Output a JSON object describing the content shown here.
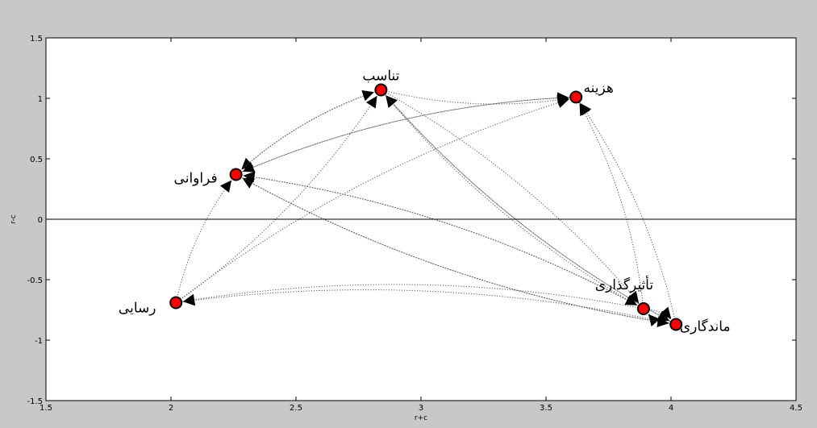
{
  "chart_data": {
    "type": "scatter",
    "title": "",
    "xlabel": "r+c",
    "ylabel": "r-c",
    "xlim": [
      1.5,
      4.5
    ],
    "ylim": [
      -1.5,
      1.5
    ],
    "xticks": [
      1.5,
      2,
      2.5,
      3,
      3.5,
      4,
      4.5
    ],
    "xtick_labels": [
      "1.5",
      "2",
      "2.5",
      "3",
      "3.5",
      "4",
      "4.5"
    ],
    "yticks": [
      1.5,
      1,
      0.5,
      0,
      -0.5,
      -1,
      -1.5
    ],
    "ytick_labels": [
      "1.5",
      "1",
      "0.5",
      "0",
      "-0.5",
      "-1",
      "-1.5"
    ],
    "reference_line_y": 0,
    "points": [
      {
        "label": "تناسب",
        "x": 2.84,
        "y": 1.07
      },
      {
        "label": "هزینه",
        "x": 3.62,
        "y": 1.01
      },
      {
        "label": "فراوانی",
        "x": 2.26,
        "y": 0.37
      },
      {
        "label": "رسایی",
        "x": 2.02,
        "y": -0.69
      },
      {
        "label": "تأثیرگذاری",
        "x": 3.89,
        "y": -0.74
      },
      {
        "label": "ماندگاری",
        "x": 4.02,
        "y": -0.87
      }
    ],
    "arrows": [
      {
        "from": 3,
        "to": 2
      },
      {
        "from": 3,
        "to": 0
      },
      {
        "from": 3,
        "to": 1
      },
      {
        "from": 4,
        "to": 2
      },
      {
        "from": 4,
        "to": 0
      },
      {
        "from": 4,
        "to": 3
      },
      {
        "from": 4,
        "to": 5
      },
      {
        "from": 4,
        "to": 1
      },
      {
        "from": 5,
        "to": 0
      },
      {
        "from": 5,
        "to": 1
      },
      {
        "from": 5,
        "to": 2
      },
      {
        "from": 5,
        "to": 3
      },
      {
        "from": 5,
        "to": 4
      },
      {
        "from": 0,
        "to": 2
      },
      {
        "from": 0,
        "to": 4
      },
      {
        "from": 0,
        "to": 5
      },
      {
        "from": 2,
        "to": 1
      },
      {
        "from": 1,
        "to": 2
      },
      {
        "from": 2,
        "to": 0
      },
      {
        "from": 0,
        "to": 1
      },
      {
        "from": 2,
        "to": 4
      },
      {
        "from": 2,
        "to": 5
      }
    ],
    "colors": {
      "marker_fill": "#ff0000",
      "marker_edge": "#000000",
      "background": "#c8c8c8",
      "plot_bg": "#ffffff"
    },
    "grid": false,
    "legend": "none"
  }
}
